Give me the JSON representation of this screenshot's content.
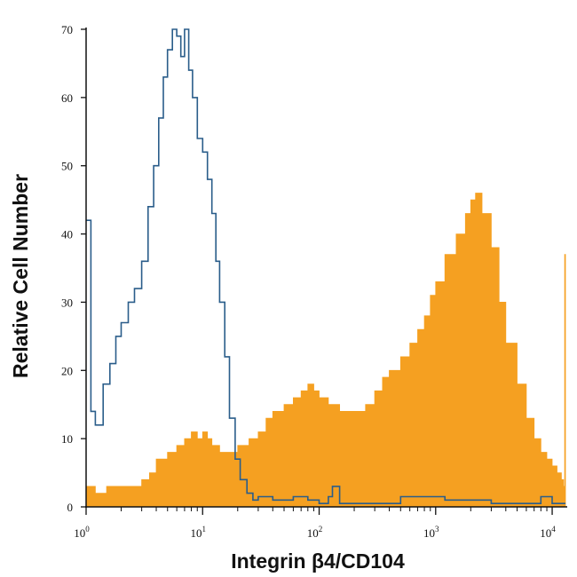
{
  "chart_data": {
    "type": "area",
    "xlabel": "Integrin β4/CD104",
    "ylabel": "Relative Cell Number",
    "x_scale": "log",
    "xlim": [
      1,
      13000
    ],
    "ylim": [
      0,
      70
    ],
    "x_ticks": [
      {
        "value": 1,
        "base": "10",
        "exp": "0"
      },
      {
        "value": 10,
        "base": "10",
        "exp": "1"
      },
      {
        "value": 100,
        "base": "10",
        "exp": "2"
      },
      {
        "value": 1000,
        "base": "10",
        "exp": "3"
      },
      {
        "value": 10000,
        "base": "10",
        "exp": "4"
      }
    ],
    "y_ticks": [
      "0",
      "10",
      "20",
      "30",
      "40",
      "50",
      "60",
      "70"
    ],
    "grid": false,
    "series": [
      {
        "style": "outline",
        "color": "#2a5d8a",
        "x": [
          1.0,
          1.1,
          1.2,
          1.4,
          1.6,
          1.8,
          2.0,
          2.3,
          2.6,
          3.0,
          3.4,
          3.8,
          4.2,
          4.6,
          5.0,
          5.5,
          6.0,
          6.5,
          7.0,
          7.6,
          8.2,
          9.0,
          10,
          11,
          12,
          13,
          14,
          15.5,
          17,
          19,
          21,
          24,
          27,
          30,
          40,
          60,
          80,
          100,
          120,
          130,
          150,
          300,
          500,
          800,
          1200,
          2000,
          3000,
          5000,
          8000,
          10000,
          13000
        ],
        "y": [
          42,
          14,
          12,
          18,
          21,
          25,
          27,
          30,
          32,
          36,
          44,
          50,
          57,
          63,
          67,
          70,
          69,
          66,
          70,
          64,
          60,
          54,
          52,
          48,
          43,
          36,
          30,
          22,
          13,
          7,
          4,
          2,
          1,
          1.5,
          1,
          1.5,
          1,
          0.5,
          1.5,
          3,
          0.5,
          0.5,
          1.5,
          1.5,
          1,
          1,
          0.5,
          0.5,
          1.5,
          0.5,
          0.5
        ]
      },
      {
        "style": "filled",
        "color": "#f5a021",
        "x": [
          1.0,
          1.2,
          1.5,
          2.0,
          2.5,
          3.0,
          3.5,
          4.0,
          5.0,
          6.0,
          7.0,
          8.0,
          9.0,
          10,
          11,
          12,
          14,
          16,
          18,
          20,
          25,
          30,
          35,
          40,
          50,
          60,
          70,
          80,
          90,
          100,
          120,
          150,
          200,
          250,
          300,
          350,
          400,
          500,
          600,
          700,
          800,
          900,
          1000,
          1200,
          1500,
          1800,
          2000,
          2200,
          2500,
          3000,
          3500,
          4000,
          5000,
          6000,
          7000,
          8000,
          9000,
          10000,
          11000,
          12000,
          12500,
          12800,
          13000
        ],
        "y": [
          3,
          2,
          3,
          3,
          3,
          4,
          5,
          7,
          8,
          9,
          10,
          11,
          10,
          11,
          10,
          9,
          8,
          8,
          8,
          9,
          10,
          11,
          13,
          14,
          15,
          16,
          17,
          18,
          17,
          16,
          15,
          14,
          14,
          15,
          17,
          19,
          20,
          22,
          24,
          26,
          28,
          31,
          33,
          37,
          40,
          43,
          45,
          46,
          43,
          38,
          30,
          24,
          18,
          13,
          10,
          8,
          7,
          6,
          5,
          4,
          3,
          37,
          3
        ]
      }
    ]
  }
}
